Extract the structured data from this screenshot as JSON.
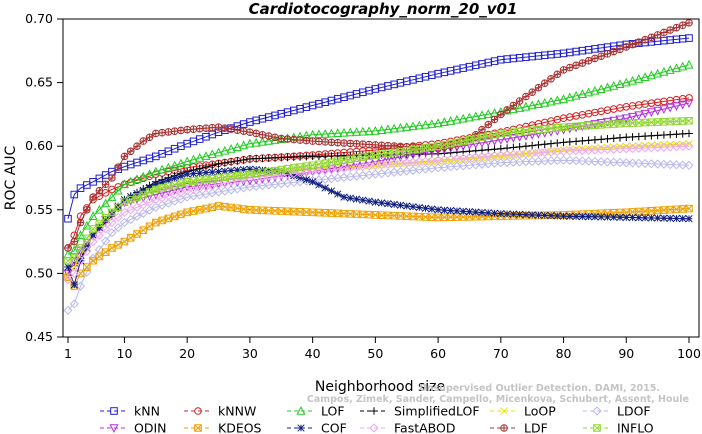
{
  "chart_data": {
    "type": "line",
    "title": "Cardiotocography_norm_20_v01",
    "xlabel": "Neighborhood size",
    "ylabel": "ROC AUC",
    "xlim": [
      1,
      100
    ],
    "ylim": [
      0.45,
      0.7
    ],
    "xticks": [
      1,
      10,
      20,
      30,
      40,
      50,
      60,
      70,
      80,
      90,
      100
    ],
    "yticks": [
      0.45,
      0.5,
      0.55,
      0.6,
      0.65,
      0.7
    ],
    "xtick_labels": [
      "1",
      "10",
      "20",
      "30",
      "40",
      "50",
      "60",
      "70",
      "80",
      "90",
      "100"
    ],
    "ytick_labels": [
      "0.45",
      "0.50",
      "0.55",
      "0.60",
      "0.65",
      "0.70"
    ],
    "grid": false,
    "legend_position": "bottom",
    "credit": [
      "Campos, Zimek, Sander, Campello, Micenkova, Schubert, Assent, Houle",
      "Unsupervised Outlier Detection. DAMI, 2015."
    ],
    "series": [
      {
        "name": "kNN",
        "color": "#1f1fd0",
        "marker": "square",
        "x": [
          1,
          2,
          3,
          5,
          8,
          10,
          15,
          20,
          25,
          30,
          40,
          50,
          60,
          70,
          80,
          90,
          100
        ],
        "y": [
          0.543,
          0.562,
          0.567,
          0.572,
          0.58,
          0.584,
          0.592,
          0.602,
          0.611,
          0.619,
          0.632,
          0.645,
          0.657,
          0.668,
          0.673,
          0.68,
          0.685
        ]
      },
      {
        "name": "kNNW",
        "color": "#d42020",
        "marker": "circle",
        "x": [
          1,
          2,
          3,
          5,
          8,
          10,
          15,
          20,
          30,
          40,
          50,
          60,
          70,
          80,
          90,
          100
        ],
        "y": [
          0.52,
          0.53,
          0.545,
          0.558,
          0.566,
          0.57,
          0.578,
          0.583,
          0.59,
          0.593,
          0.597,
          0.602,
          0.611,
          0.622,
          0.631,
          0.638
        ]
      },
      {
        "name": "LOF",
        "color": "#20cc20",
        "marker": "triangle-up",
        "x": [
          1,
          2,
          3,
          5,
          8,
          10,
          15,
          20,
          25,
          30,
          40,
          50,
          60,
          70,
          80,
          90,
          100
        ],
        "y": [
          0.515,
          0.518,
          0.53,
          0.545,
          0.56,
          0.57,
          0.58,
          0.588,
          0.595,
          0.602,
          0.609,
          0.612,
          0.618,
          0.627,
          0.637,
          0.65,
          0.664
        ]
      },
      {
        "name": "SimplifiedLOF",
        "color": "#000000",
        "marker": "plus",
        "x": [
          1,
          2,
          3,
          5,
          8,
          10,
          15,
          20,
          25,
          30,
          40,
          50,
          60,
          70,
          80,
          90,
          100
        ],
        "y": [
          0.505,
          0.506,
          0.512,
          0.53,
          0.545,
          0.558,
          0.572,
          0.58,
          0.586,
          0.59,
          0.592,
          0.593,
          0.594,
          0.598,
          0.603,
          0.607,
          0.61
        ]
      },
      {
        "name": "LoOP",
        "color": "#e6e600",
        "marker": "x",
        "x": [
          1,
          2,
          3,
          5,
          8,
          10,
          15,
          20,
          30,
          40,
          50,
          60,
          70,
          80,
          90,
          100
        ],
        "y": [
          0.5,
          0.505,
          0.515,
          0.53,
          0.548,
          0.556,
          0.566,
          0.572,
          0.578,
          0.582,
          0.585,
          0.588,
          0.592,
          0.597,
          0.6,
          0.602
        ]
      },
      {
        "name": "LDOF",
        "color": "#b8b8ee",
        "marker": "diamond",
        "x": [
          1,
          2,
          3,
          5,
          8,
          10,
          15,
          20,
          30,
          40,
          50,
          60,
          70,
          80,
          90,
          100
        ],
        "y": [
          0.471,
          0.476,
          0.49,
          0.512,
          0.532,
          0.54,
          0.552,
          0.56,
          0.568,
          0.573,
          0.578,
          0.583,
          0.587,
          0.589,
          0.587,
          0.585
        ]
      },
      {
        "name": "ODIN",
        "color": "#b030e0",
        "marker": "triangle-down",
        "x": [
          1,
          2,
          3,
          5,
          8,
          10,
          15,
          20,
          30,
          40,
          50,
          60,
          70,
          80,
          90,
          100
        ],
        "y": [
          0.5,
          0.51,
          0.518,
          0.53,
          0.548,
          0.556,
          0.562,
          0.568,
          0.573,
          0.58,
          0.588,
          0.597,
          0.605,
          0.613,
          0.622,
          0.634
        ]
      },
      {
        "name": "KDEOS",
        "color": "#f0a000",
        "marker": "square-x",
        "x": [
          1,
          2,
          3,
          5,
          8,
          10,
          15,
          20,
          25,
          30,
          40,
          50,
          60,
          70,
          80,
          90,
          100
        ],
        "y": [
          0.497,
          0.49,
          0.5,
          0.51,
          0.52,
          0.525,
          0.54,
          0.548,
          0.553,
          0.55,
          0.548,
          0.546,
          0.544,
          0.545,
          0.546,
          0.548,
          0.551
        ]
      },
      {
        "name": "COF",
        "color": "#102080",
        "marker": "asterisk",
        "x": [
          1,
          2,
          3,
          5,
          8,
          10,
          15,
          20,
          25,
          30,
          35,
          40,
          45,
          50,
          55,
          60,
          70,
          80,
          90,
          100
        ],
        "y": [
          0.505,
          0.491,
          0.51,
          0.53,
          0.548,
          0.558,
          0.57,
          0.578,
          0.58,
          0.582,
          0.58,
          0.572,
          0.56,
          0.556,
          0.553,
          0.55,
          0.547,
          0.545,
          0.544,
          0.543
        ]
      },
      {
        "name": "FastABOD",
        "color": "#f0a8f0",
        "marker": "diamond",
        "x": [
          1,
          2,
          3,
          5,
          8,
          10,
          15,
          20,
          30,
          40,
          50,
          60,
          70,
          80,
          90,
          100
        ],
        "y": [
          0.495,
          0.5,
          0.51,
          0.525,
          0.54,
          0.548,
          0.558,
          0.565,
          0.575,
          0.58,
          0.585,
          0.589,
          0.593,
          0.596,
          0.598,
          0.6
        ]
      },
      {
        "name": "LDF",
        "color": "#a83030",
        "marker": "circle-plus",
        "x": [
          1,
          2,
          3,
          5,
          8,
          10,
          13,
          15,
          20,
          25,
          30,
          35,
          40,
          50,
          60,
          65,
          70,
          80,
          90,
          100
        ],
        "y": [
          0.52,
          0.525,
          0.54,
          0.56,
          0.575,
          0.592,
          0.604,
          0.61,
          0.613,
          0.615,
          0.611,
          0.606,
          0.604,
          0.601,
          0.598,
          0.605,
          0.625,
          0.66,
          0.678,
          0.697
        ]
      },
      {
        "name": "INFLO",
        "color": "#90d830",
        "marker": "square-x",
        "x": [
          1,
          2,
          3,
          5,
          8,
          10,
          15,
          20,
          25,
          30,
          40,
          50,
          60,
          70,
          80,
          90,
          100
        ],
        "y": [
          0.51,
          0.512,
          0.52,
          0.535,
          0.548,
          0.556,
          0.566,
          0.572,
          0.575,
          0.578,
          0.585,
          0.593,
          0.6,
          0.61,
          0.615,
          0.618,
          0.62
        ]
      }
    ]
  }
}
